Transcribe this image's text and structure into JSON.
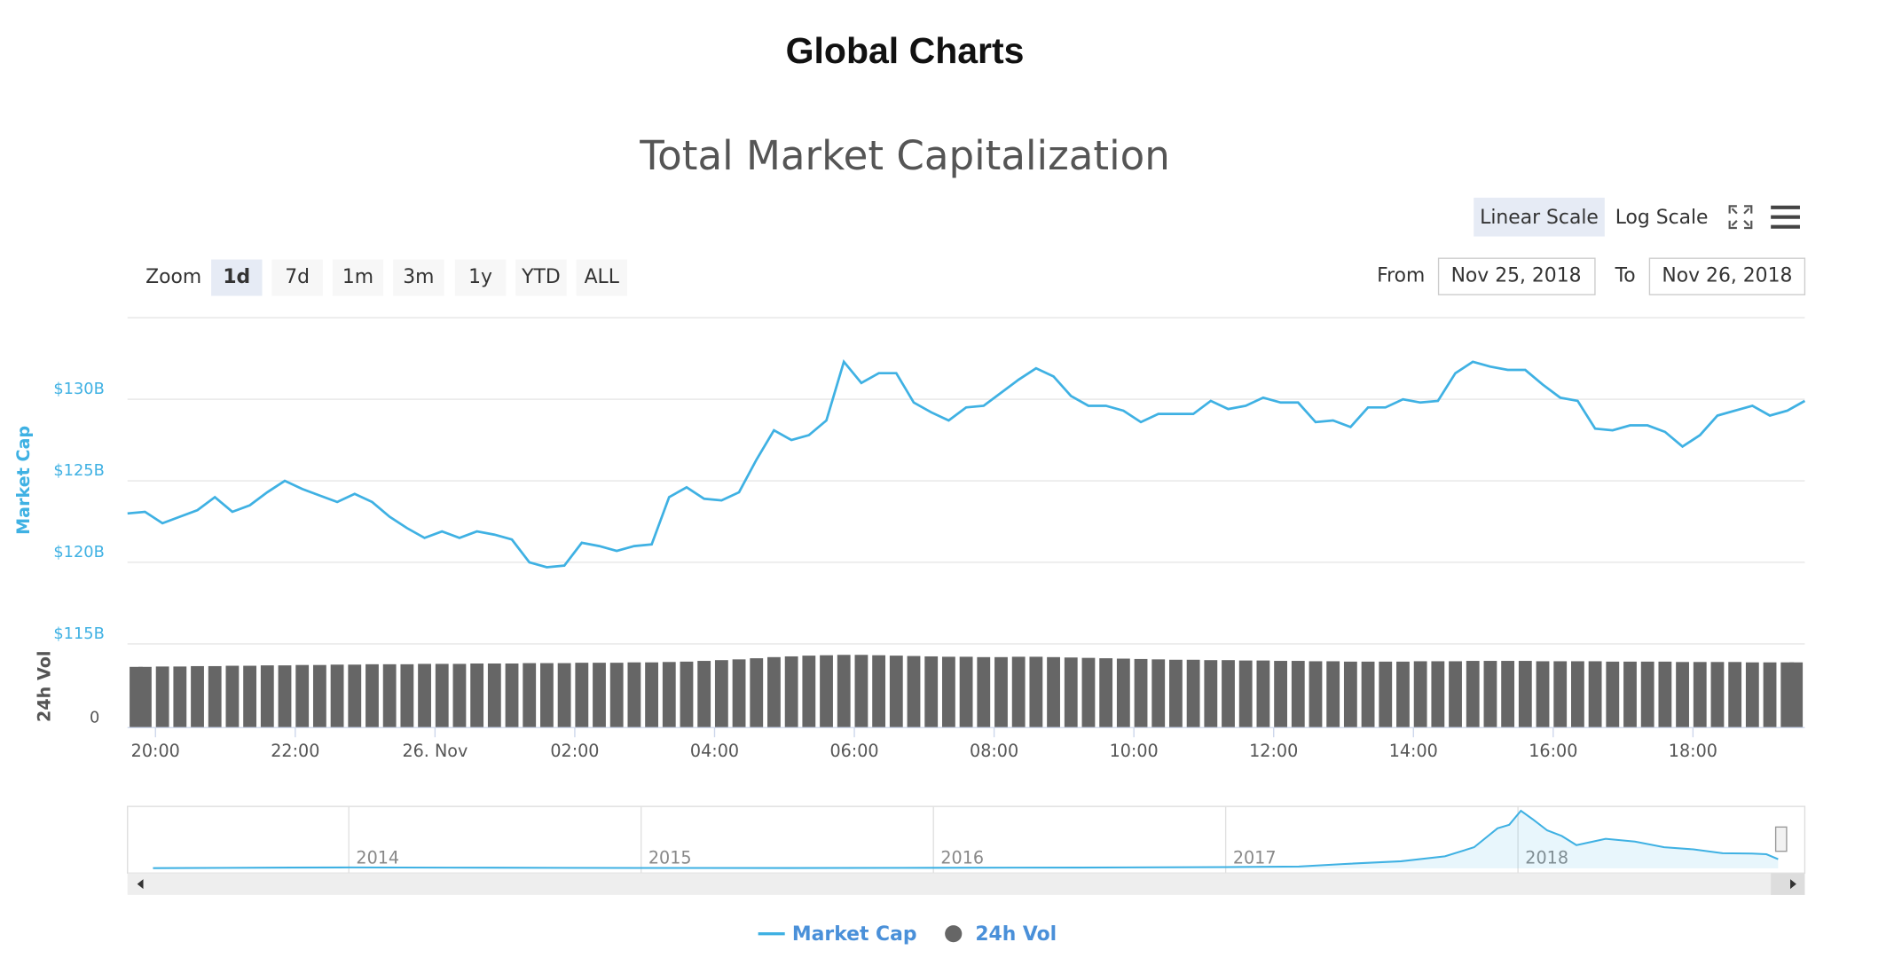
{
  "ui": {
    "heading": "Global Charts",
    "scale_buttons": [
      "Linear Scale",
      "Log Scale"
    ],
    "zoom_label": "Zoom",
    "zoom_buttons": [
      "1d",
      "7d",
      "1m",
      "3m",
      "1y",
      "YTD",
      "ALL"
    ],
    "from_label": "From",
    "from": "Nov 25, 2018",
    "to_label": "To",
    "to": "Nov 26, 2018"
  },
  "chart_data": [
    {
      "type": "line",
      "title": "Total Market Capitalization",
      "ylabel": "Market Cap",
      "y2label": "24h Vol",
      "x": [
        -0.4,
        -0.15,
        0.1,
        0.35,
        0.6,
        0.85,
        1.1,
        1.35,
        1.6,
        1.85,
        2.1,
        2.35,
        2.6,
        2.85,
        3.1,
        3.35,
        3.6,
        3.85,
        4.1,
        4.35,
        4.6,
        4.85,
        5.1,
        5.35,
        5.6,
        5.85,
        6.1,
        6.35,
        6.6,
        6.85,
        7.1,
        7.35,
        7.6,
        7.85,
        8.1,
        8.35,
        8.6,
        8.85,
        9.1,
        9.35,
        9.6,
        9.85,
        10.1,
        10.35,
        10.6,
        10.85,
        11.1,
        11.35,
        11.6,
        11.85,
        12.1,
        12.35,
        12.6,
        12.85,
        13.1,
        13.35,
        13.6,
        13.85,
        14.1,
        14.35,
        14.6,
        14.85,
        15.1,
        15.35,
        15.6,
        15.85,
        16.1,
        16.35,
        16.6,
        16.85,
        17.1,
        17.35,
        17.6,
        17.85,
        18.1,
        18.35,
        18.6,
        18.85,
        19.1,
        19.35,
        19.6,
        19.85,
        20.1,
        20.35,
        20.6,
        20.85,
        21.1,
        21.35,
        21.6,
        21.85,
        22.1,
        22.35,
        22.6,
        22.85,
        23.1,
        23.35,
        23.6
      ],
      "xlim": [
        -0.4,
        23.6
      ],
      "xticks": [
        {
          "value": 0,
          "label": "20:00"
        },
        {
          "value": 2,
          "label": "22:00"
        },
        {
          "value": 4,
          "label": "26. Nov"
        },
        {
          "value": 6,
          "label": "02:00"
        },
        {
          "value": 8,
          "label": "04:00"
        },
        {
          "value": 10,
          "label": "06:00"
        },
        {
          "value": 12,
          "label": "08:00"
        },
        {
          "value": 14,
          "label": "10:00"
        },
        {
          "value": 16,
          "label": "12:00"
        },
        {
          "value": 18,
          "label": "14:00"
        },
        {
          "value": 20,
          "label": "16:00"
        },
        {
          "value": 22,
          "label": "18:00"
        }
      ],
      "ylim": [
        115,
        135
      ],
      "yticks": [
        {
          "value": 115,
          "label": "$115B"
        },
        {
          "value": 120,
          "label": "$120B"
        },
        {
          "value": 125,
          "label": "$125B"
        },
        {
          "value": 130,
          "label": "$130B"
        }
      ],
      "y2lim": [
        0,
        22
      ],
      "y2ticks": [
        0
      ],
      "grid": true,
      "series": [
        {
          "name": "Market Cap",
          "color": "#3fb1e3",
          "values": [
            123.0,
            123.1,
            122.4,
            122.8,
            123.2,
            124.0,
            123.1,
            123.5,
            124.3,
            125.0,
            124.5,
            124.1,
            123.7,
            124.2,
            123.7,
            122.8,
            122.1,
            121.5,
            121.9,
            121.5,
            121.9,
            121.7,
            121.4,
            120.0,
            119.7,
            119.8,
            121.2,
            121.0,
            120.7,
            121.0,
            121.1,
            124.0,
            124.6,
            123.9,
            123.8,
            124.3,
            126.3,
            128.1,
            127.5,
            127.8,
            128.7,
            132.3,
            131.0,
            131.6,
            131.6,
            129.8,
            129.2,
            128.7,
            129.5,
            129.6,
            130.4,
            131.2,
            131.9,
            131.4,
            130.2,
            129.6,
            129.6,
            129.3,
            128.6,
            129.1,
            129.1,
            129.1,
            129.9,
            129.4,
            129.6,
            130.1,
            129.8,
            129.8,
            128.6,
            128.7,
            128.3,
            129.5,
            129.5,
            130.0,
            129.8,
            129.9,
            131.6,
            132.3,
            132.0,
            131.8,
            131.8,
            130.9,
            130.1,
            129.9,
            128.2,
            128.1,
            128.4,
            128.4,
            128.0,
            127.1,
            127.8,
            129.0,
            129.3,
            129.6,
            129.0,
            129.3,
            129.9
          ]
        },
        {
          "name": "24h Vol",
          "color": "#666666",
          "type": "bar",
          "axis": "y2",
          "values": [
            16.2,
            16.2,
            16.3,
            16.3,
            16.4,
            16.4,
            16.5,
            16.5,
            16.6,
            16.6,
            16.7,
            16.7,
            16.8,
            16.8,
            16.9,
            16.9,
            16.9,
            17.0,
            17.0,
            17.0,
            17.1,
            17.1,
            17.1,
            17.2,
            17.2,
            17.2,
            17.3,
            17.3,
            17.3,
            17.4,
            17.4,
            17.5,
            17.6,
            17.8,
            18.0,
            18.2,
            18.5,
            18.8,
            19.0,
            19.2,
            19.3,
            19.4,
            19.4,
            19.3,
            19.2,
            19.1,
            19.0,
            18.9,
            18.9,
            18.8,
            18.8,
            18.9,
            18.9,
            18.8,
            18.7,
            18.6,
            18.5,
            18.4,
            18.3,
            18.2,
            18.1,
            18.1,
            18.0,
            18.0,
            17.9,
            17.9,
            17.8,
            17.8,
            17.7,
            17.7,
            17.6,
            17.6,
            17.6,
            17.6,
            17.7,
            17.7,
            17.7,
            17.8,
            17.8,
            17.8,
            17.8,
            17.7,
            17.7,
            17.7,
            17.7,
            17.6,
            17.6,
            17.6,
            17.6,
            17.5,
            17.5,
            17.5,
            17.5,
            17.4,
            17.4,
            17.4,
            17.4
          ]
        }
      ]
    },
    {
      "type": "area",
      "color": "#3fb1e3",
      "x": [
        2013.33,
        2013.8,
        2014.0,
        2014.5,
        2015.0,
        2015.5,
        2016.0,
        2016.5,
        2017.0,
        2017.25,
        2017.4,
        2017.6,
        2017.75,
        2017.85,
        2017.93,
        2017.97,
        2018.01,
        2018.05,
        2018.1,
        2018.15,
        2018.2,
        2018.3,
        2018.4,
        2018.5,
        2018.6,
        2018.7,
        2018.8,
        2018.85,
        2018.89
      ],
      "values": [
        1.5,
        10,
        12,
        8,
        4,
        3.5,
        7,
        10,
        17,
        25,
        60,
        100,
        170,
        300,
        570,
        620,
        820,
        700,
        540,
        460,
        330,
        420,
        380,
        300,
        270,
        215,
        210,
        200,
        130
      ],
      "xlim": [
        2013.33,
        2018.89
      ],
      "xticks": [
        2014,
        2015,
        2016,
        2017,
        2018
      ],
      "ylim": [
        0,
        830
      ]
    }
  ]
}
